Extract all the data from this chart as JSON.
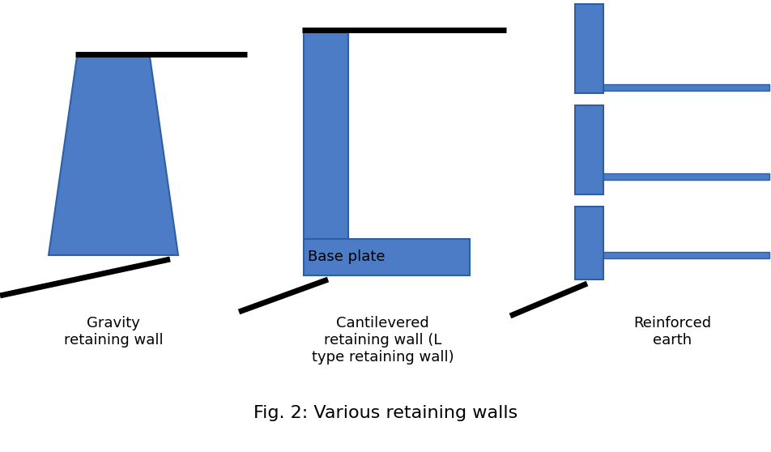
{
  "fig_width": 9.53,
  "fig_height": 5.58,
  "dpi": 100,
  "background_color": "#ffffff",
  "wall_color": "#4d7cc7",
  "wall_edge_color": "#2e5fa3",
  "line_color": "#000000",
  "title": "Fig. 2: Various retaining walls",
  "title_fontsize": 16,
  "label1": "Gravity\nretaining wall",
  "label2": "Cantilevered\nretaining wall (L\ntype retaining wall)",
  "label3": "Reinforced\nearth",
  "label_fontsize": 13,
  "base_plate_label": "Base plate"
}
